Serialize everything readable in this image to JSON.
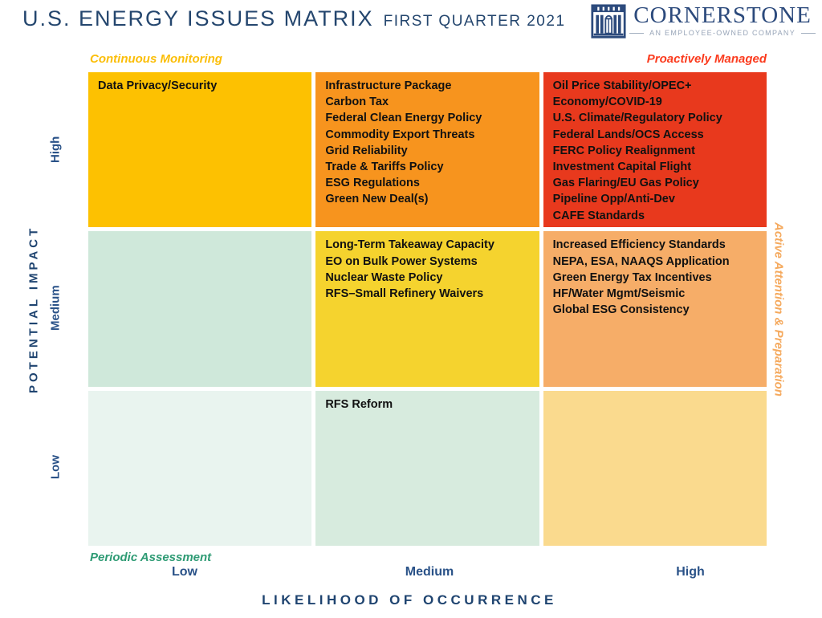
{
  "header": {
    "title_main": "U.S. ENERGY ISSUES MATRIX",
    "title_sub": "FIRST QUARTER 2021",
    "logo": {
      "name": "CORNERSTONE",
      "tagline": "AN EMPLOYEE-OWNED COMPANY",
      "icon": "building-columns-icon",
      "color": "#2C4A7C"
    }
  },
  "chart_data": {
    "type": "heatmap",
    "title": "U.S. ENERGY ISSUES MATRIX — FIRST QUARTER 2021",
    "xlabel": "LIKELIHOOD OF OCCURRENCE",
    "ylabel": "POTENTIAL IMPACT",
    "x_categories": [
      "Low",
      "Medium",
      "High"
    ],
    "y_categories": [
      "High",
      "Medium",
      "Low"
    ],
    "legend_position": "none",
    "grid_layout": "3x3 cells with white gaps",
    "corner_labels": {
      "top_left": {
        "text": "Continuous Monitoring",
        "color": "#FBBE08"
      },
      "top_right": {
        "text": "Proactively Managed",
        "color": "#FB3B1E"
      },
      "bottom_left": {
        "text": "Periodic Assessment",
        "color": "#2E9B74"
      },
      "right_side": {
        "text": "Active Attention & Preparation",
        "color": "#F5A95D"
      }
    },
    "cells": [
      {
        "impact": "High",
        "likelihood": "Low",
        "color": "#FDC101",
        "items": [
          "Data Privacy/Security"
        ]
      },
      {
        "impact": "High",
        "likelihood": "Medium",
        "color": "#F7941E",
        "items": [
          "Infrastructure Package",
          "Carbon Tax",
          "Federal Clean Energy Policy",
          "Commodity Export Threats",
          "Grid Reliability",
          "Trade & Tariffs Policy",
          "ESG Regulations",
          "Green New Deal(s)"
        ]
      },
      {
        "impact": "High",
        "likelihood": "High",
        "color": "#E8391D",
        "items": [
          "Oil Price Stability/OPEC+",
          "Economy/COVID-19",
          "U.S. Climate/Regulatory Policy",
          "Federal Lands/OCS Access",
          "FERC Policy Realignment",
          "Investment Capital Flight",
          "Gas Flaring/EU Gas Policy",
          "Pipeline Opp/Anti-Dev",
          "CAFE Standards"
        ]
      },
      {
        "impact": "Medium",
        "likelihood": "Low",
        "color": "#CFE8DA",
        "items": []
      },
      {
        "impact": "Medium",
        "likelihood": "Medium",
        "color": "#F5D32E",
        "items": [
          "Long-Term Takeaway Capacity",
          "EO on Bulk Power Systems",
          "Nuclear Waste Policy",
          "RFS–Small Refinery Waivers"
        ]
      },
      {
        "impact": "Medium",
        "likelihood": "High",
        "color": "#F6AD68",
        "items": [
          "Increased Efficiency Standards",
          "NEPA, ESA, NAAQS Application",
          "Green Energy Tax Incentives",
          "HF/Water Mgmt/Seismic",
          "Global ESG Consistency"
        ]
      },
      {
        "impact": "Low",
        "likelihood": "Low",
        "color": "#E9F4EF",
        "items": []
      },
      {
        "impact": "Low",
        "likelihood": "Medium",
        "color": "#D7EBDE",
        "items": [
          "RFS Reform"
        ]
      },
      {
        "impact": "Low",
        "likelihood": "High",
        "color": "#FADA8E",
        "items": []
      }
    ]
  },
  "axis_colors": {
    "title": "#1F4470",
    "ticks": "#2A5288"
  }
}
